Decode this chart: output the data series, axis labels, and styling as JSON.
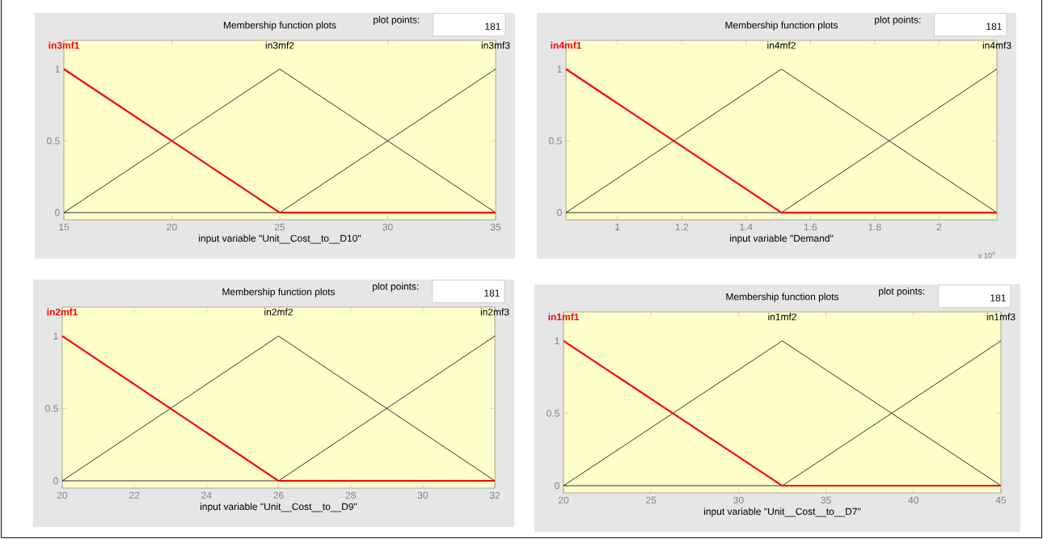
{
  "chart_data": [
    {
      "type": "line",
      "title": "Membership function plots",
      "xlabel": "input variable \"Unit__Cost__to__D10\"",
      "annotations": [
        "plot points:",
        "181"
      ],
      "x": [
        15,
        25,
        35
      ],
      "series": [
        {
          "name": "in3mf1",
          "color": "#ff0000",
          "values": [
            1,
            0,
            0
          ]
        },
        {
          "name": "in3mf2",
          "color": "#000000",
          "values": [
            0,
            1,
            0
          ]
        },
        {
          "name": "in3mf3",
          "color": "#000000",
          "values": [
            0,
            0,
            1
          ]
        }
      ],
      "xlim": [
        15,
        35
      ],
      "xticks": [
        15,
        20,
        25,
        30,
        35
      ],
      "ylim": [
        -0.05,
        1.2
      ],
      "yticks": [
        0,
        0.5,
        1
      ]
    },
    {
      "type": "line",
      "title": "Membership function plots",
      "xlabel": "input variable \"Demand\"",
      "annotations": [
        "plot points:",
        "181",
        "x 10$^{4}$"
      ],
      "x": [
        0.84,
        1.51,
        2.18
      ],
      "series": [
        {
          "name": "in4mf1",
          "color": "#ff0000",
          "values": [
            1,
            0,
            0
          ]
        },
        {
          "name": "in4mf2",
          "color": "#000000",
          "values": [
            0,
            1,
            0
          ]
        },
        {
          "name": "in4mf3",
          "color": "#000000",
          "values": [
            0,
            0,
            1
          ]
        }
      ],
      "xlim": [
        0.84,
        2.18
      ],
      "xticks": [
        1,
        1.2,
        1.4,
        1.6,
        1.8,
        2
      ],
      "ylim": [
        -0.05,
        1.2
      ],
      "yticks": [
        0,
        0.5,
        1
      ]
    },
    {
      "type": "line",
      "title": "Membership function plots",
      "xlabel": "input variable \"Unit__Cost__to__D9\"",
      "annotations": [
        "plot points:",
        "181"
      ],
      "x": [
        20,
        26,
        32
      ],
      "series": [
        {
          "name": "in2mf1",
          "color": "#ff0000",
          "values": [
            1,
            0,
            0
          ]
        },
        {
          "name": "in2mf2",
          "color": "#000000",
          "values": [
            0,
            1,
            0
          ]
        },
        {
          "name": "in2mf3",
          "color": "#000000",
          "values": [
            0,
            0,
            1
          ]
        }
      ],
      "xlim": [
        20,
        32
      ],
      "xticks": [
        20,
        22,
        24,
        26,
        28,
        30,
        32
      ],
      "ylim": [
        -0.05,
        1.2
      ],
      "yticks": [
        0,
        0.5,
        1
      ]
    },
    {
      "type": "line",
      "title": "Membership function plots",
      "xlabel": "input variable \"Unit__Cost__to__D7\"",
      "annotations": [
        "plot points:",
        "181"
      ],
      "x": [
        20,
        32.5,
        45
      ],
      "series": [
        {
          "name": "in1mf1",
          "color": "#ff0000",
          "values": [
            1,
            0,
            0
          ]
        },
        {
          "name": "in1mf2",
          "color": "#000000",
          "values": [
            0,
            1,
            0
          ]
        },
        {
          "name": "in1mf3",
          "color": "#000000",
          "values": [
            0,
            0,
            1
          ]
        }
      ],
      "xlim": [
        20,
        45
      ],
      "xticks": [
        20,
        25,
        30,
        35,
        40,
        45
      ],
      "ylim": [
        -0.05,
        1.2
      ],
      "yticks": [
        0,
        0.5,
        1
      ]
    }
  ]
}
